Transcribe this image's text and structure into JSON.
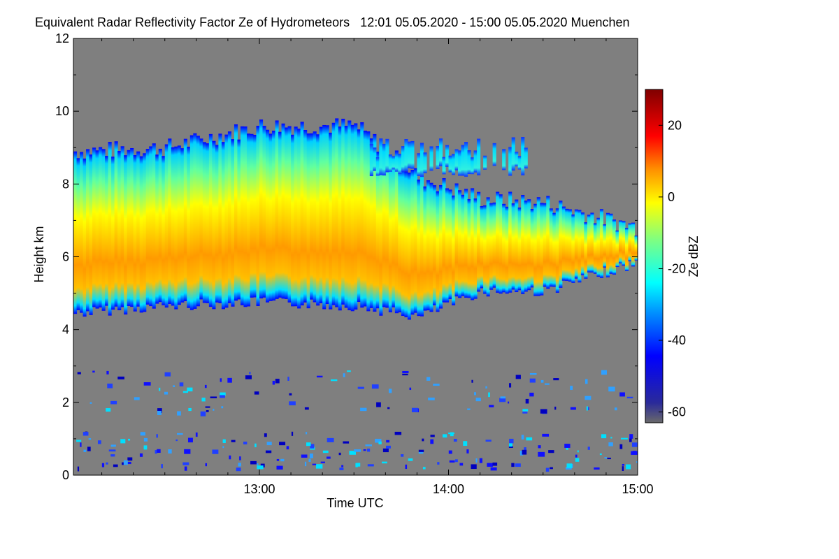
{
  "chart_data": {
    "type": "heatmap",
    "title": "Equivalent Radar Reflectivity Factor Ze of Hydrometeors   12:01 05.05.2020 - 15:00 05.05.2020 Muenchen",
    "xlabel": "Time UTC",
    "ylabel": "Height km",
    "x_range": [
      "12:01",
      "15:00"
    ],
    "x_ticks": [
      "13:00",
      "14:00",
      "15:00"
    ],
    "ylim": [
      0,
      12
    ],
    "y_ticks": [
      0,
      2,
      4,
      6,
      8,
      10,
      12
    ],
    "colorbar": {
      "label": "Ze dBZ",
      "range": [
        -63,
        30
      ],
      "ticks": [
        -60,
        -40,
        -20,
        0,
        20
      ]
    },
    "background_value_dbz": -60,
    "cloud_layer": {
      "description_points": [
        {
          "time": "12:01",
          "base_km": 4.6,
          "top_km": 8.9,
          "core_dbz": 5
        },
        {
          "time": "12:30",
          "base_km": 4.8,
          "top_km": 9.0,
          "core_dbz": 5
        },
        {
          "time": "13:00",
          "base_km": 4.9,
          "top_km": 9.6,
          "core_dbz": 8
        },
        {
          "time": "13:30",
          "base_km": 4.8,
          "top_km": 9.6,
          "core_dbz": 5
        },
        {
          "time": "13:50",
          "base_km": 4.5,
          "top_km": 8.2,
          "core_dbz": 10
        },
        {
          "time": "14:10",
          "base_km": 5.2,
          "top_km": 7.6,
          "core_dbz": 7
        },
        {
          "time": "14:30",
          "base_km": 5.2,
          "top_km": 7.5,
          "core_dbz": 6
        },
        {
          "time": "15:00",
          "base_km": 6.0,
          "top_km": 6.8,
          "core_dbz": 8
        }
      ]
    },
    "upper_detached_layer": {
      "time_range": [
        "13:35",
        "14:25"
      ],
      "base_km": 8.2,
      "top_km": 9.3,
      "dbz": -25
    },
    "low_level_echoes_km": [
      0,
      2.9
    ]
  }
}
